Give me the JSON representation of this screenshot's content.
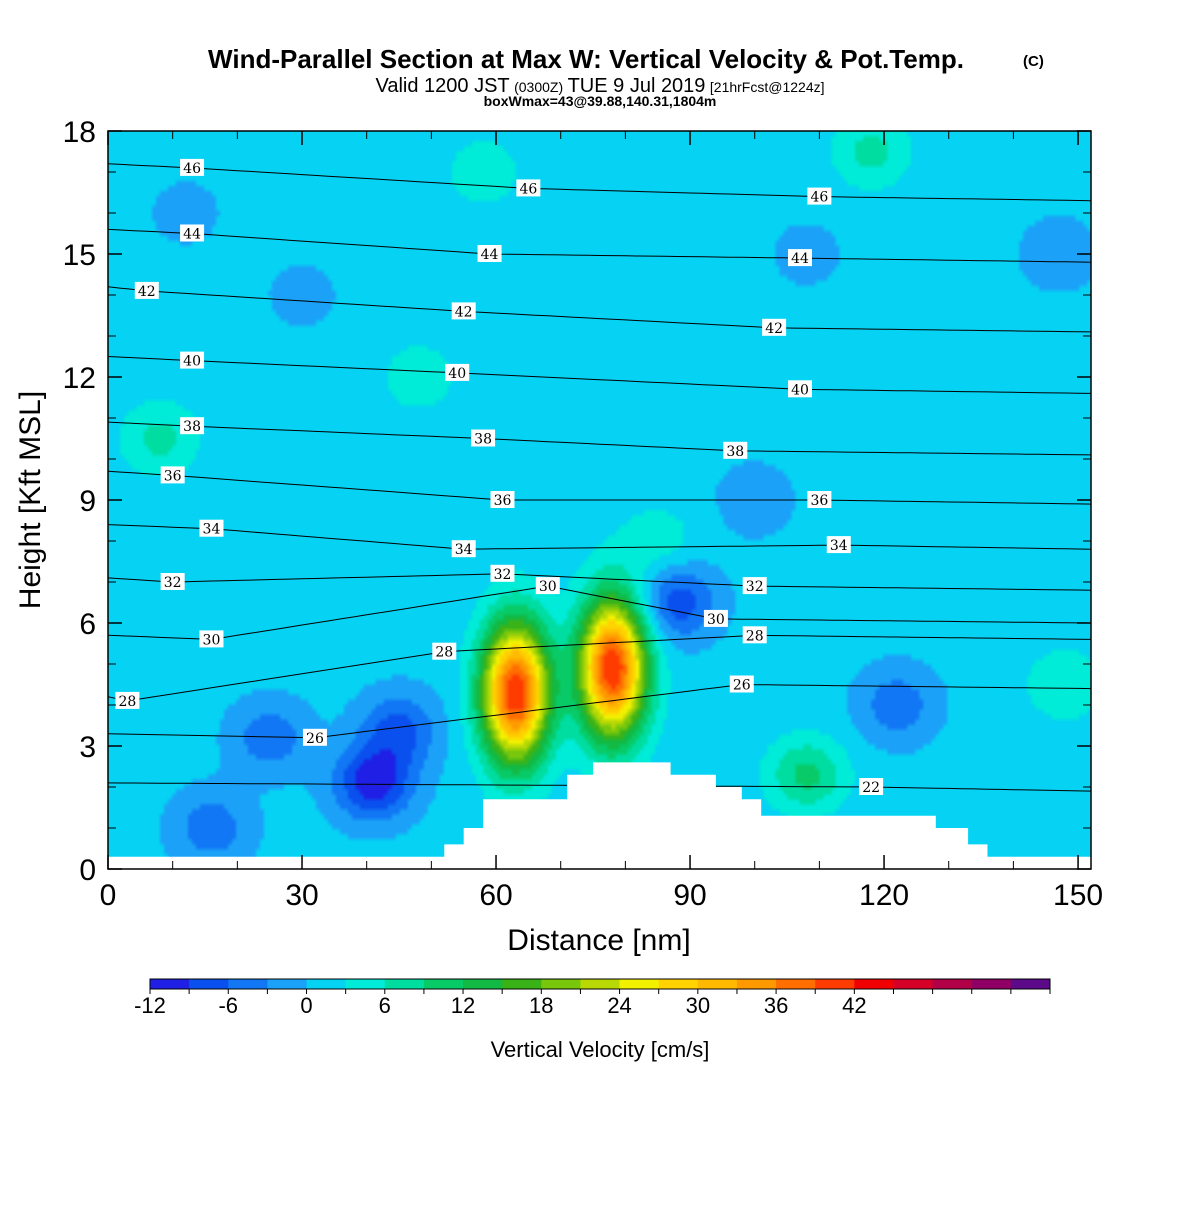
{
  "chart_data": {
    "type": "heatmap",
    "title": "Wind-Parallel Section at Max W: Vertical Velocity & Pot.Temp.",
    "title_mark": "(C)",
    "subtitle": {
      "prefix": "Valid 1200 JST",
      "zulu": "(0300Z)",
      "date": "TUE 9 Jul 2019",
      "forecast": "[21hrFcst@1224z]"
    },
    "note": "boxWmax=43@39.88,140.31,1804m",
    "xlabel": "Distance [nm]",
    "ylabel": "Height [Kft MSL]",
    "xlim": [
      0,
      152
    ],
    "ylim": [
      0,
      18
    ],
    "x_ticks": [
      0,
      30,
      60,
      90,
      120,
      150
    ],
    "y_ticks": [
      0,
      3,
      6,
      9,
      12,
      15,
      18
    ],
    "grid": false,
    "colorbar": {
      "label": "Vertical Velocity [cm/s]",
      "ticks": [
        -12,
        -6,
        0,
        6,
        12,
        18,
        24,
        30,
        36,
        42
      ],
      "bin_width": 3,
      "colors": [
        "#1f1fe6",
        "#0a50ee",
        "#1177f5",
        "#1ba2f8",
        "#06d2f3",
        "#00ebd8",
        "#00dda1",
        "#08cb68",
        "#12b944",
        "#3ab319",
        "#78c70c",
        "#b8d906",
        "#f2f200",
        "#ffd200",
        "#ffba00",
        "#ff9900",
        "#ff6e00",
        "#ff3c00",
        "#f00000",
        "#d40028",
        "#b00046",
        "#900064",
        "#5c0a8a"
      ]
    },
    "fields": {
      "vertical_velocity_cm_s": {
        "background": 1,
        "features": [
          {
            "x": 63,
            "z": 4.3,
            "w": 41
          },
          {
            "x": 78,
            "z": 4.9,
            "w": 41
          },
          {
            "x": 41,
            "z": 2.1,
            "w": -12
          },
          {
            "x": 45,
            "z": 3.4,
            "w": -8
          },
          {
            "x": 88,
            "z": 6.5,
            "w": -9
          },
          {
            "x": 108,
            "z": 2.3,
            "w": 9
          },
          {
            "x": 8,
            "z": 10.5,
            "w": 6
          },
          {
            "x": 118,
            "z": 17.5,
            "w": 6
          },
          {
            "x": 58,
            "z": 17,
            "w": 4
          },
          {
            "x": 12,
            "z": 16,
            "w": -2
          },
          {
            "x": 30,
            "z": 14,
            "w": -2
          },
          {
            "x": 108,
            "z": 15,
            "w": -2
          },
          {
            "x": 147,
            "z": 15,
            "w": -3
          },
          {
            "x": 148,
            "z": 4.5,
            "w": 5
          },
          {
            "x": 122,
            "z": 4,
            "w": -6
          },
          {
            "x": 16,
            "z": 1,
            "w": -6
          },
          {
            "x": 25,
            "z": 3.2,
            "w": -6
          },
          {
            "x": 48,
            "z": 12,
            "w": 4
          },
          {
            "x": 85,
            "z": 8,
            "w": 4
          },
          {
            "x": 100,
            "z": 9,
            "w": -3
          }
        ]
      },
      "potential_temperature_c": {
        "labels": [
          {
            "x": 13,
            "z": 17.1,
            "t": "46"
          },
          {
            "x": 65,
            "z": 16.6,
            "t": "46"
          },
          {
            "x": 110,
            "z": 16.4,
            "t": "46"
          },
          {
            "x": 13,
            "z": 15.5,
            "t": "44"
          },
          {
            "x": 59,
            "z": 15.0,
            "t": "44"
          },
          {
            "x": 107,
            "z": 14.9,
            "t": "44"
          },
          {
            "x": 6,
            "z": 14.1,
            "t": "42"
          },
          {
            "x": 55,
            "z": 13.6,
            "t": "42"
          },
          {
            "x": 103,
            "z": 13.2,
            "t": "42"
          },
          {
            "x": 13,
            "z": 12.4,
            "t": "40"
          },
          {
            "x": 54,
            "z": 12.1,
            "t": "40"
          },
          {
            "x": 107,
            "z": 11.7,
            "t": "40"
          },
          {
            "x": 13,
            "z": 10.8,
            "t": "38"
          },
          {
            "x": 58,
            "z": 10.5,
            "t": "38"
          },
          {
            "x": 97,
            "z": 10.2,
            "t": "38"
          },
          {
            "x": 10,
            "z": 9.6,
            "t": "36"
          },
          {
            "x": 61,
            "z": 9.0,
            "t": "36"
          },
          {
            "x": 110,
            "z": 9.0,
            "t": "36"
          },
          {
            "x": 16,
            "z": 8.3,
            "t": "34"
          },
          {
            "x": 55,
            "z": 7.8,
            "t": "34"
          },
          {
            "x": 113,
            "z": 7.9,
            "t": "34"
          },
          {
            "x": 10,
            "z": 7.0,
            "t": "32"
          },
          {
            "x": 61,
            "z": 7.2,
            "t": "32"
          },
          {
            "x": 100,
            "z": 6.9,
            "t": "32"
          },
          {
            "x": 16,
            "z": 5.6,
            "t": "30"
          },
          {
            "x": 68,
            "z": 6.9,
            "t": "30"
          },
          {
            "x": 94,
            "z": 6.1,
            "t": "30"
          },
          {
            "x": 3,
            "z": 4.1,
            "t": "28"
          },
          {
            "x": 52,
            "z": 5.3,
            "t": "28"
          },
          {
            "x": 100,
            "z": 5.7,
            "t": "28"
          },
          {
            "x": 32,
            "z": 3.2,
            "t": "26"
          },
          {
            "x": 98,
            "z": 4.5,
            "t": "26"
          },
          {
            "x": 118,
            "z": 2.0,
            "t": "22"
          }
        ]
      }
    },
    "terrain_top_kft": [
      [
        0,
        0.3
      ],
      [
        52,
        0.3
      ],
      [
        52,
        0.6
      ],
      [
        55,
        0.6
      ],
      [
        55,
        1.0
      ],
      [
        58,
        1.0
      ],
      [
        58,
        1.7
      ],
      [
        71,
        1.7
      ],
      [
        71,
        2.3
      ],
      [
        75,
        2.3
      ],
      [
        75,
        2.6
      ],
      [
        87,
        2.6
      ],
      [
        87,
        2.3
      ],
      [
        94,
        2.3
      ],
      [
        94,
        2.0
      ],
      [
        98,
        2.0
      ],
      [
        98,
        1.7
      ],
      [
        101,
        1.7
      ],
      [
        101,
        1.3
      ],
      [
        128,
        1.3
      ],
      [
        128,
        1.0
      ],
      [
        133,
        1.0
      ],
      [
        133,
        0.6
      ],
      [
        136,
        0.6
      ],
      [
        136,
        0.3
      ],
      [
        152,
        0.3
      ]
    ]
  }
}
